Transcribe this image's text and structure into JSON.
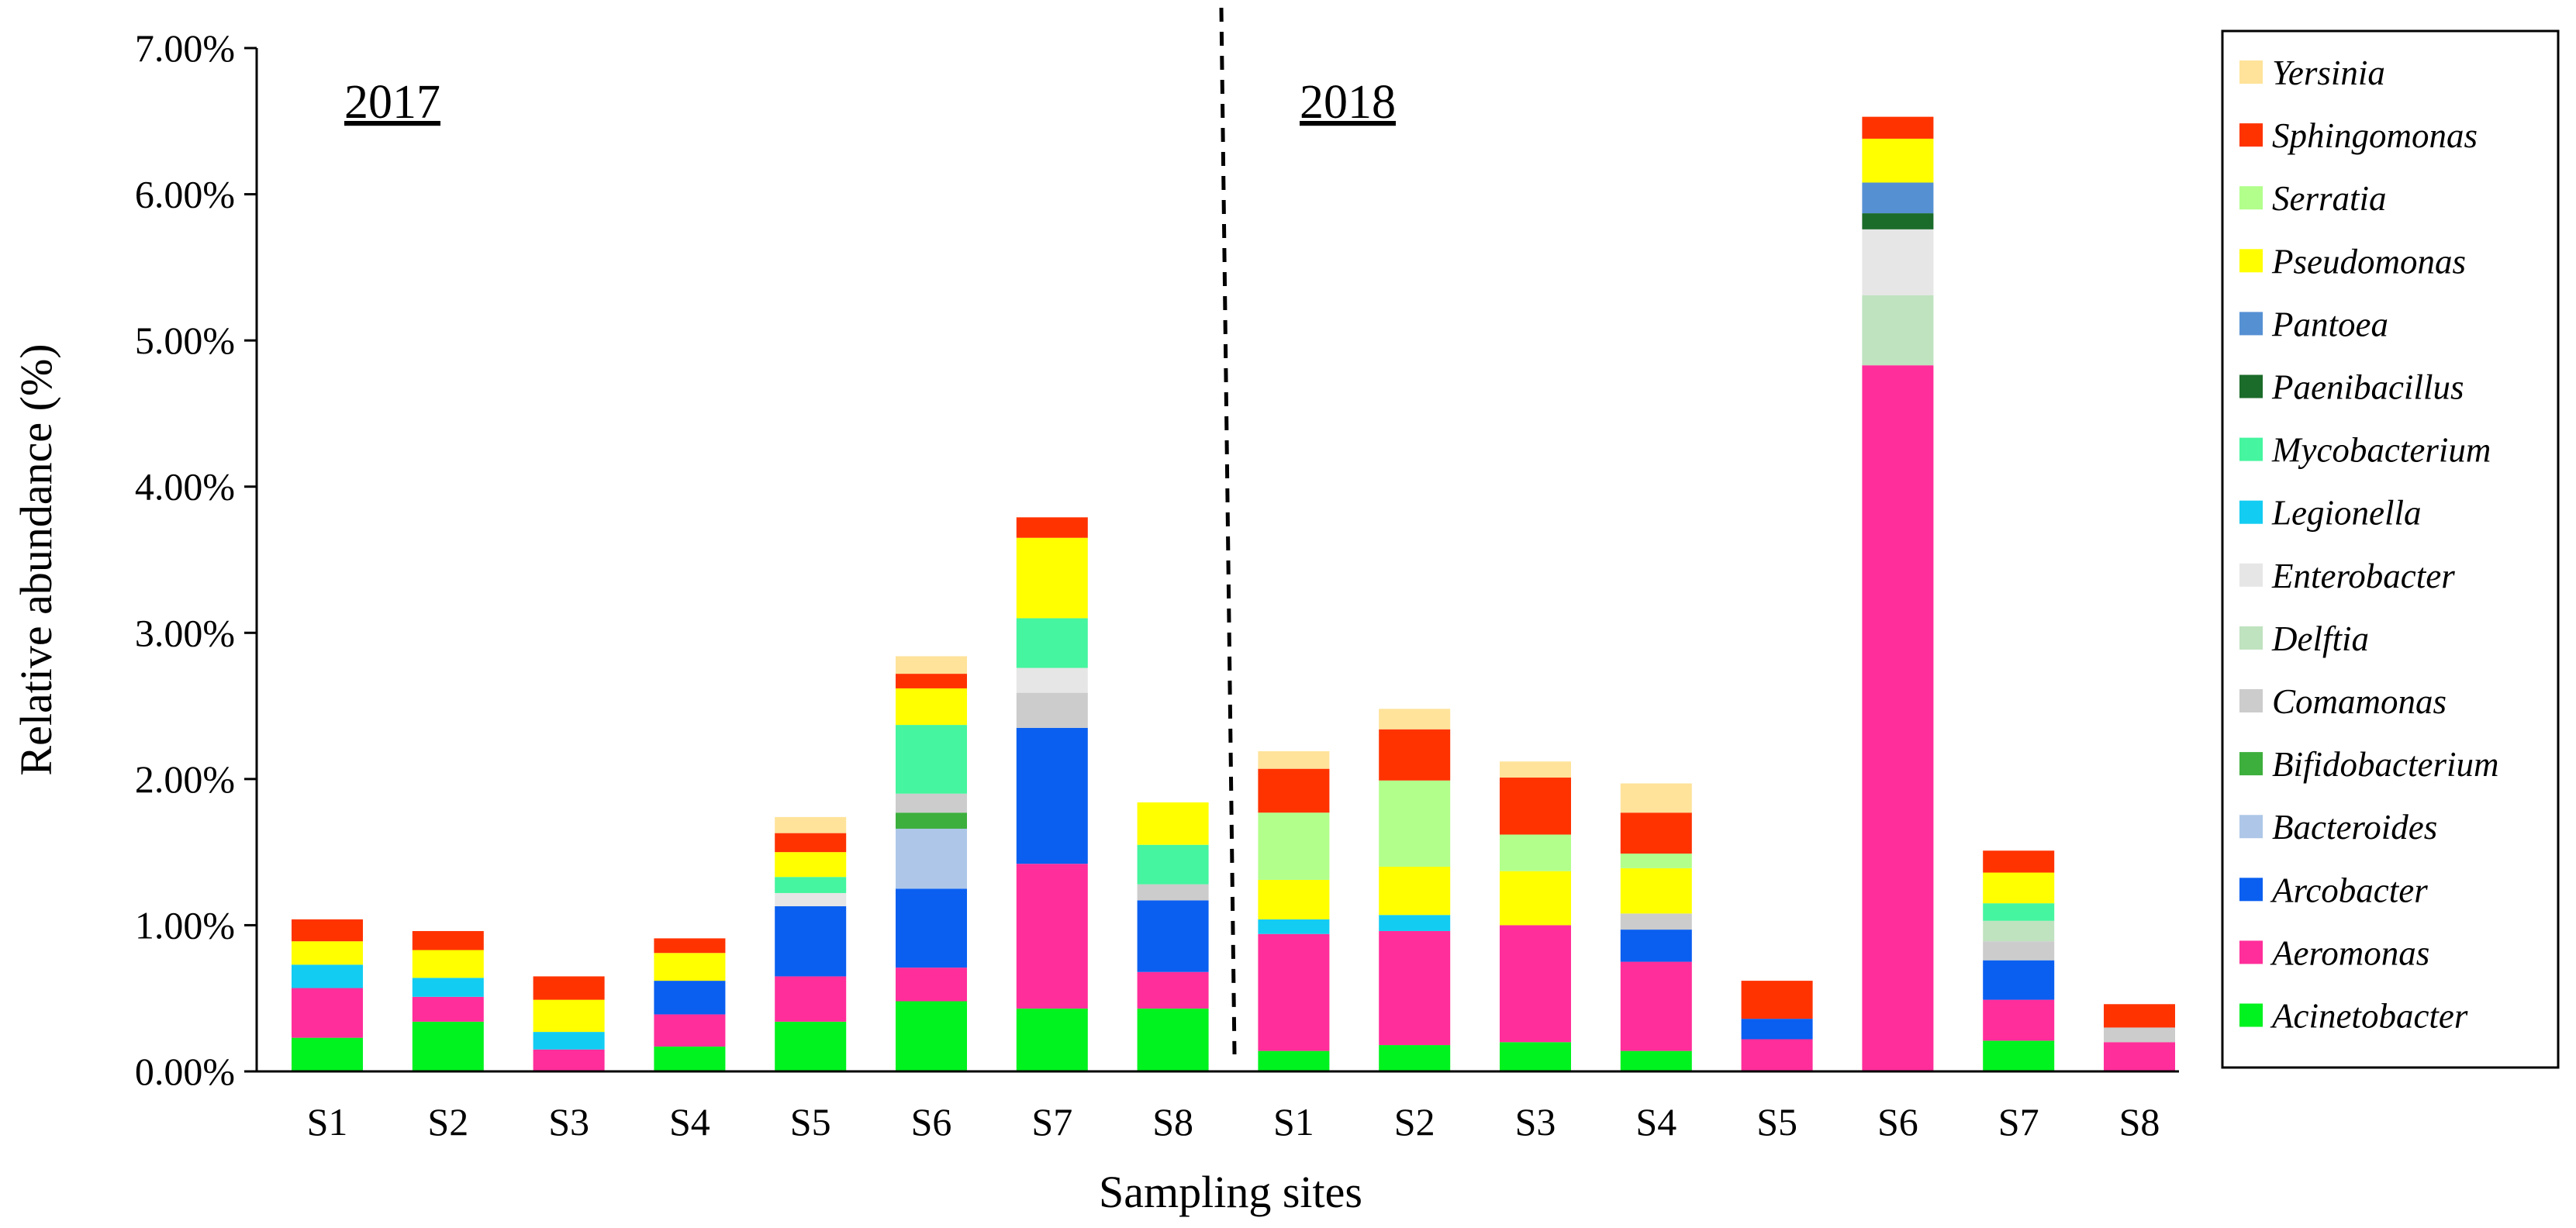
{
  "chart_data": {
    "type": "bar",
    "stacked": true,
    "title": "",
    "xlabel": "Sampling sites",
    "ylabel": "Relative abundance (%)",
    "ylim": [
      0,
      7
    ],
    "yticks": [
      "0.00%",
      "1.00%",
      "2.00%",
      "3.00%",
      "4.00%",
      "5.00%",
      "6.00%",
      "7.00%"
    ],
    "ytick_values": [
      0,
      1,
      2,
      3,
      4,
      5,
      6,
      7
    ],
    "groups": [
      {
        "label": "2017",
        "categories": [
          "S1",
          "S2",
          "S3",
          "S4",
          "S5",
          "S6",
          "S7",
          "S8"
        ]
      },
      {
        "label": "2018",
        "categories": [
          "S1",
          "S2",
          "S3",
          "S4",
          "S5",
          "S6",
          "S7",
          "S8"
        ]
      }
    ],
    "legend_position": "right",
    "series": [
      {
        "name": "Acinetobacter",
        "color": "#00F21F",
        "values": [
          0.23,
          0.34,
          0.0,
          0.17,
          0.34,
          0.48,
          0.43,
          0.43,
          0.14,
          0.18,
          0.2,
          0.14,
          0.0,
          0.0,
          0.21,
          0.0
        ]
      },
      {
        "name": "Aeromonas",
        "color": "#FF2E9A",
        "values": [
          0.34,
          0.17,
          0.15,
          0.22,
          0.31,
          0.23,
          0.99,
          0.25,
          0.8,
          0.78,
          0.8,
          0.61,
          0.22,
          4.83,
          0.28,
          0.2
        ]
      },
      {
        "name": "Arcobacter",
        "color": "#0A5FF0",
        "values": [
          0.0,
          0.0,
          0.0,
          0.23,
          0.48,
          0.54,
          0.93,
          0.49,
          0.0,
          0.0,
          0.0,
          0.22,
          0.14,
          0.0,
          0.27,
          0.0
        ]
      },
      {
        "name": "Bacteroides",
        "color": "#AEC7E8",
        "values": [
          0.0,
          0.0,
          0.0,
          0.0,
          0.0,
          0.41,
          0.0,
          0.0,
          0.0,
          0.0,
          0.0,
          0.0,
          0.0,
          0.0,
          0.0,
          0.0
        ]
      },
      {
        "name": "Bifidobacterium",
        "color": "#3DAF3D",
        "values": [
          0.0,
          0.0,
          0.0,
          0.0,
          0.0,
          0.11,
          0.0,
          0.0,
          0.0,
          0.0,
          0.0,
          0.0,
          0.0,
          0.0,
          0.0,
          0.0
        ]
      },
      {
        "name": "Comamonas",
        "color": "#CCCCCC",
        "values": [
          0.0,
          0.0,
          0.0,
          0.0,
          0.0,
          0.13,
          0.24,
          0.11,
          0.0,
          0.0,
          0.0,
          0.11,
          0.0,
          0.0,
          0.13,
          0.1
        ]
      },
      {
        "name": "Delftia",
        "color": "#BFE2BF",
        "values": [
          0.0,
          0.0,
          0.0,
          0.0,
          0.0,
          0.0,
          0.0,
          0.0,
          0.0,
          0.0,
          0.0,
          0.0,
          0.0,
          0.48,
          0.14,
          0.0
        ]
      },
      {
        "name": "Enterobacter",
        "color": "#E6E6E6",
        "values": [
          0.0,
          0.0,
          0.0,
          0.0,
          0.09,
          0.0,
          0.17,
          0.0,
          0.0,
          0.0,
          0.0,
          0.0,
          0.0,
          0.45,
          0.0,
          0.0
        ]
      },
      {
        "name": "Legionella",
        "color": "#13CCF2",
        "values": [
          0.16,
          0.13,
          0.12,
          0.0,
          0.0,
          0.0,
          0.0,
          0.0,
          0.1,
          0.11,
          0.0,
          0.0,
          0.0,
          0.0,
          0.0,
          0.0
        ]
      },
      {
        "name": "Mycobacterium",
        "color": "#45F59F",
        "values": [
          0.0,
          0.0,
          0.0,
          0.0,
          0.11,
          0.47,
          0.34,
          0.27,
          0.0,
          0.0,
          0.0,
          0.0,
          0.0,
          0.0,
          0.12,
          0.0
        ]
      },
      {
        "name": "Paenibacillus",
        "color": "#1B6B2A",
        "values": [
          0.0,
          0.0,
          0.0,
          0.0,
          0.0,
          0.0,
          0.0,
          0.0,
          0.0,
          0.0,
          0.0,
          0.0,
          0.0,
          0.11,
          0.0,
          0.0
        ]
      },
      {
        "name": "Pantoea",
        "color": "#5590D3",
        "values": [
          0.0,
          0.0,
          0.0,
          0.0,
          0.0,
          0.0,
          0.0,
          0.0,
          0.0,
          0.0,
          0.0,
          0.0,
          0.0,
          0.21,
          0.0,
          0.0
        ]
      },
      {
        "name": "Pseudomonas",
        "color": "#FFFF00",
        "values": [
          0.16,
          0.19,
          0.22,
          0.19,
          0.17,
          0.25,
          0.55,
          0.29,
          0.27,
          0.33,
          0.37,
          0.31,
          0.0,
          0.3,
          0.21,
          0.0
        ]
      },
      {
        "name": "Serratia",
        "color": "#B2FF8C",
        "values": [
          0.0,
          0.0,
          0.0,
          0.0,
          0.0,
          0.0,
          0.0,
          0.0,
          0.46,
          0.59,
          0.25,
          0.1,
          0.0,
          0.0,
          0.0,
          0.0
        ]
      },
      {
        "name": "Sphingomonas",
        "color": "#FF3300",
        "values": [
          0.15,
          0.13,
          0.16,
          0.1,
          0.13,
          0.1,
          0.14,
          0.0,
          0.3,
          0.35,
          0.39,
          0.28,
          0.26,
          0.15,
          0.15,
          0.16
        ]
      },
      {
        "name": "Yersinia",
        "color": "#FFE39A",
        "values": [
          0.0,
          0.0,
          0.0,
          0.0,
          0.11,
          0.12,
          0.0,
          0.0,
          0.12,
          0.14,
          0.11,
          0.2,
          0.0,
          0.0,
          0.0,
          0.0
        ]
      }
    ]
  }
}
